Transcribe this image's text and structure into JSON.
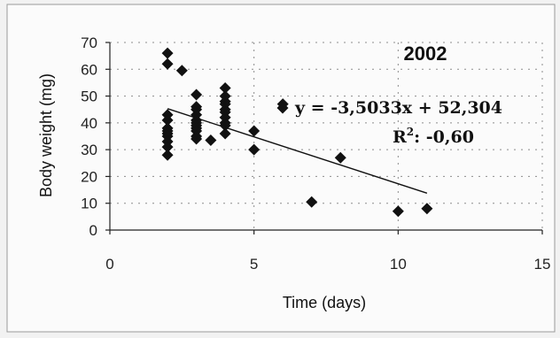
{
  "chart_data": {
    "type": "scatter",
    "title": "2002",
    "xlabel": "Time (days)",
    "ylabel": "Body weight (mg)",
    "xlim": [
      0,
      15
    ],
    "ylim": [
      0,
      70
    ],
    "x_ticks": [
      0,
      5,
      10,
      15
    ],
    "y_ticks": [
      0,
      10,
      20,
      30,
      40,
      50,
      60,
      70
    ],
    "grid": true,
    "equation": "y = -3,5033x + 52,304",
    "r_squared_label": "R",
    "r_squared_exp": "2",
    "r_squared_value": ": -0,60",
    "trendline": {
      "slope": -3.5033,
      "intercept": 52.304,
      "x_range": [
        2,
        11
      ]
    },
    "series": [
      {
        "points": [
          [
            2,
            66
          ],
          [
            2,
            62
          ],
          [
            2,
            43
          ],
          [
            2,
            41
          ],
          [
            2,
            38
          ],
          [
            2,
            37
          ],
          [
            2,
            36
          ],
          [
            2,
            35
          ],
          [
            2,
            33
          ],
          [
            2,
            31
          ],
          [
            2,
            28
          ],
          [
            2.5,
            59.5
          ],
          [
            3,
            50.5
          ],
          [
            3,
            46
          ],
          [
            3,
            45
          ],
          [
            3,
            43
          ],
          [
            3,
            41
          ],
          [
            3,
            40
          ],
          [
            3,
            39
          ],
          [
            3,
            38
          ],
          [
            3,
            37
          ],
          [
            3,
            35
          ],
          [
            3,
            34
          ],
          [
            3.5,
            33.5
          ],
          [
            4,
            53
          ],
          [
            4,
            50
          ],
          [
            4,
            48
          ],
          [
            4,
            47
          ],
          [
            4,
            45
          ],
          [
            4,
            44
          ],
          [
            4,
            42
          ],
          [
            4,
            40
          ],
          [
            4,
            39
          ],
          [
            4,
            36
          ],
          [
            5,
            37
          ],
          [
            5,
            30
          ],
          [
            6,
            47
          ],
          [
            7,
            10.5
          ],
          [
            8,
            27
          ],
          [
            10,
            7
          ],
          [
            11,
            8
          ]
        ]
      }
    ]
  }
}
